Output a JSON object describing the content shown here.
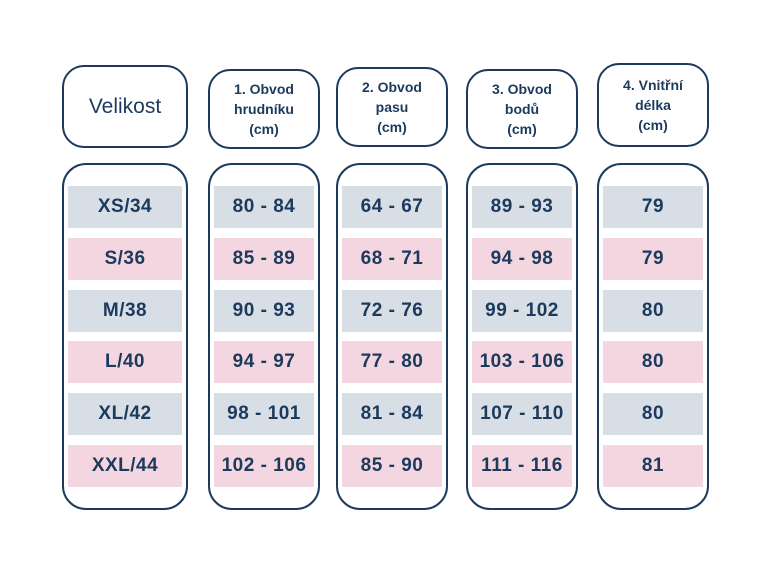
{
  "headers": [
    "Velikost",
    "1. Obvod\nhrudníku\n(cm)",
    "2. Obvod\npasu\n(cm)",
    "3. Obvod\nbodů\n(cm)",
    "4. Vnitřní\ndélka\n(cm)"
  ],
  "rows": [
    [
      "XS/34",
      "80 - 84",
      "64 - 67",
      "89 - 93",
      "79"
    ],
    [
      "S/36",
      "85 - 89",
      "68 - 71",
      "94 - 98",
      "79"
    ],
    [
      "M/38",
      "90 - 93",
      "72 - 76",
      "99 - 102",
      "80"
    ],
    [
      "L/40",
      "94 - 97",
      "77 - 80",
      "103 - 106",
      "80"
    ],
    [
      "XL/42",
      "98 - 101",
      "81 - 84",
      "107 - 110",
      "80"
    ],
    [
      "XXL/44",
      "102 - 106",
      "85 - 90",
      "111 - 116",
      "81"
    ]
  ],
  "colors": {
    "border": "#1c3a5c",
    "row_odd": "#d7dee5",
    "row_even": "#f3d6e0"
  }
}
